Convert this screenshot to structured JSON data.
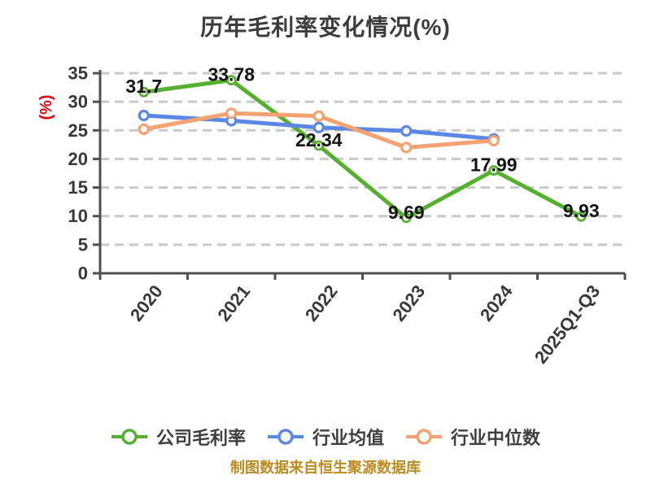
{
  "page": {
    "background": "#ffffff"
  },
  "chart_data": {
    "type": "line",
    "title": "历年毛利率变化情况(%)",
    "ylabel": "(%)",
    "xlabel": "",
    "caption": "制图数据来自恒生聚源数据库",
    "categories": [
      "2020",
      "2021",
      "2022",
      "2023",
      "2024",
      "2025Q1-Q3"
    ],
    "ylim": [
      0,
      35
    ],
    "ytick_step": 5,
    "yticks": [
      0,
      5,
      10,
      15,
      20,
      25,
      30,
      35
    ],
    "grid": "horizontal-dashed",
    "legend_position": "bottom",
    "series": [
      {
        "id": "company-gross-margin",
        "name": "公司毛利率",
        "color": "#55b02f",
        "values": [
          31.7,
          33.78,
          22.34,
          9.69,
          17.99,
          9.93
        ],
        "point_labels": [
          "31.7",
          "33.78",
          "22.34",
          "9.69",
          "17.99",
          "9.93"
        ]
      },
      {
        "id": "industry-average",
        "name": "行业均值",
        "color": "#5b87e6",
        "values": [
          27.6,
          26.7,
          25.5,
          24.9,
          23.5
        ],
        "point_labels": []
      },
      {
        "id": "industry-median",
        "name": "行业中位数",
        "color": "#f4a272",
        "values": [
          25.2,
          28.0,
          27.5,
          22.0,
          23.2
        ],
        "point_labels": []
      }
    ],
    "colors": {
      "title": "#3c3c3c",
      "axis": "#4f4f4f",
      "tick_label": "#383838",
      "grid": "#c9c9c9",
      "data_label": "#141414",
      "ylabel": "#e60012",
      "caption": "#bb8b21",
      "legend_text": "#3f3f3f",
      "marker_fill": "#ffffff"
    }
  }
}
